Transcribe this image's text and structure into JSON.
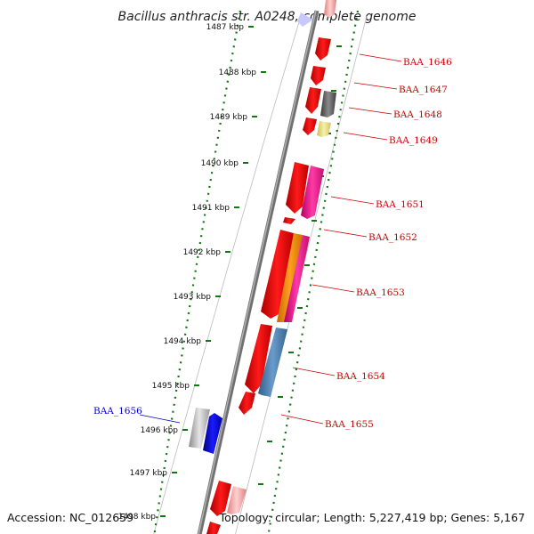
{
  "title": "Bacillus anthracis str. A0248, complete genome",
  "footer": {
    "accession": "Accession: NC_012659",
    "info": "Topology: circular; Length: 5,227,419 bp; Genes: 5,167"
  },
  "colors": {
    "plus_strand_label": "#cc0000",
    "minus_strand_label": "#0000cc",
    "backbone": "#808080",
    "tick": "#117711"
  },
  "ticks": [
    {
      "label": "1487 kbp"
    },
    {
      "label": "1488 kbp"
    },
    {
      "label": "1489 kbp"
    },
    {
      "label": "1490 kbp"
    },
    {
      "label": "1491 kbp"
    },
    {
      "label": "1492 kbp"
    },
    {
      "label": "1493 kbp"
    },
    {
      "label": "1494 kbp"
    },
    {
      "label": "1495 kbp"
    },
    {
      "label": "1496 kbp"
    },
    {
      "label": "1497 kbp"
    },
    {
      "label": "1498 kbp"
    }
  ],
  "gene_labels": [
    {
      "name": "BAA_1646",
      "strand": "+"
    },
    {
      "name": "BAA_1647",
      "strand": "+"
    },
    {
      "name": "BAA_1648",
      "strand": "+"
    },
    {
      "name": "BAA_1649",
      "strand": "+"
    },
    {
      "name": "BAA_1651",
      "strand": "+"
    },
    {
      "name": "BAA_1652",
      "strand": "+"
    },
    {
      "name": "BAA_1653",
      "strand": "+"
    },
    {
      "name": "BAA_1654",
      "strand": "+"
    },
    {
      "name": "BAA_1655",
      "strand": "+"
    },
    {
      "name": "BAA_1656",
      "strand": "-"
    }
  ]
}
